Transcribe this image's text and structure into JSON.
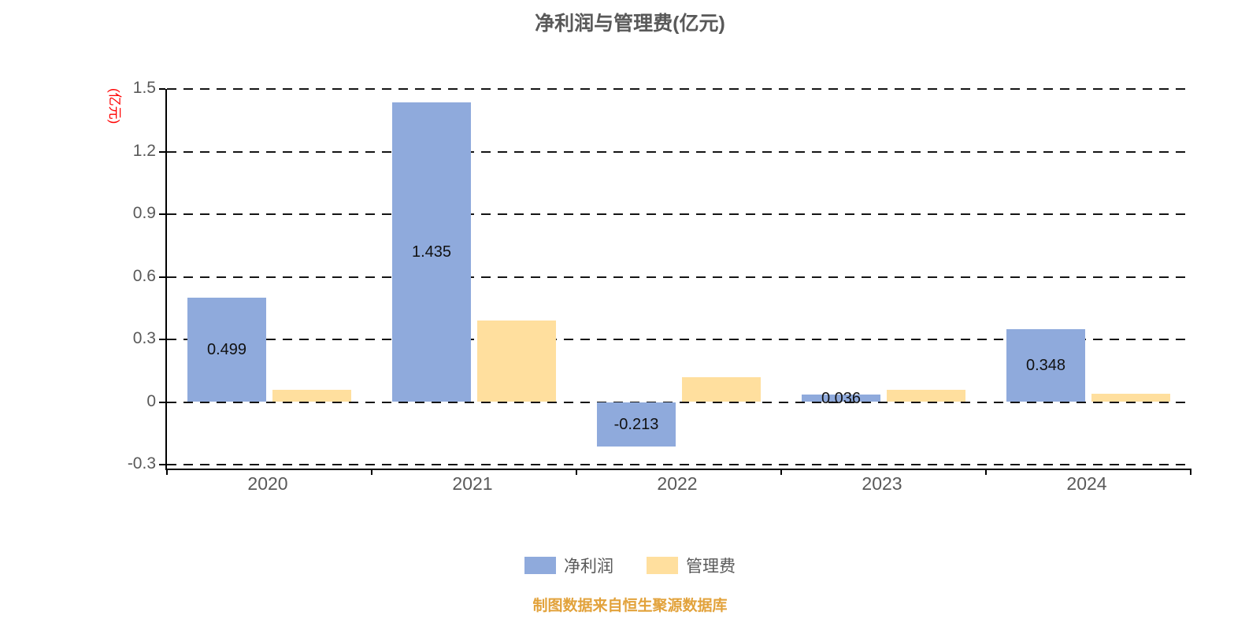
{
  "title": "净利润与管理费(亿元)",
  "y_axis_unit": "(亿元)",
  "footnote": "制图数据来自恒生聚源数据库",
  "colors": {
    "net_profit": "#8FAADC",
    "mgmt_fee": "#FFDF9E",
    "grid": "#141414",
    "axis_text": "#595959",
    "title_text": "#595959",
    "unit_text": "#FF0000",
    "footnote_text": "#E2A23B"
  },
  "chart_data": {
    "type": "bar",
    "title": "净利润与管理费(亿元)",
    "categories": [
      "2020",
      "2021",
      "2022",
      "2023",
      "2024"
    ],
    "series": [
      {
        "name": "净利润",
        "color": "#8FAADC",
        "values": [
          0.499,
          1.435,
          -0.213,
          0.036,
          0.348
        ],
        "labels": [
          "0.499",
          "1.435",
          "-0.213",
          "0.036",
          "0.348"
        ]
      },
      {
        "name": "管理费",
        "color": "#FFDF9E",
        "values": [
          0.06,
          0.39,
          0.12,
          0.06,
          0.04
        ],
        "labels": []
      }
    ],
    "ylim": [
      -0.3,
      1.5
    ],
    "yticks": [
      1.5,
      1.2,
      0.9,
      0.6,
      0.3,
      0,
      -0.3
    ],
    "ytick_labels": [
      "1.5",
      "1.2",
      "0.9",
      "0.6",
      "0.3",
      "0",
      "-0.3"
    ],
    "grid": "dashed-horizontal",
    "legend_position": "bottom"
  },
  "legend": [
    {
      "label": "净利润",
      "color": "#8FAADC"
    },
    {
      "label": "管理费",
      "color": "#FFDF9E"
    }
  ]
}
